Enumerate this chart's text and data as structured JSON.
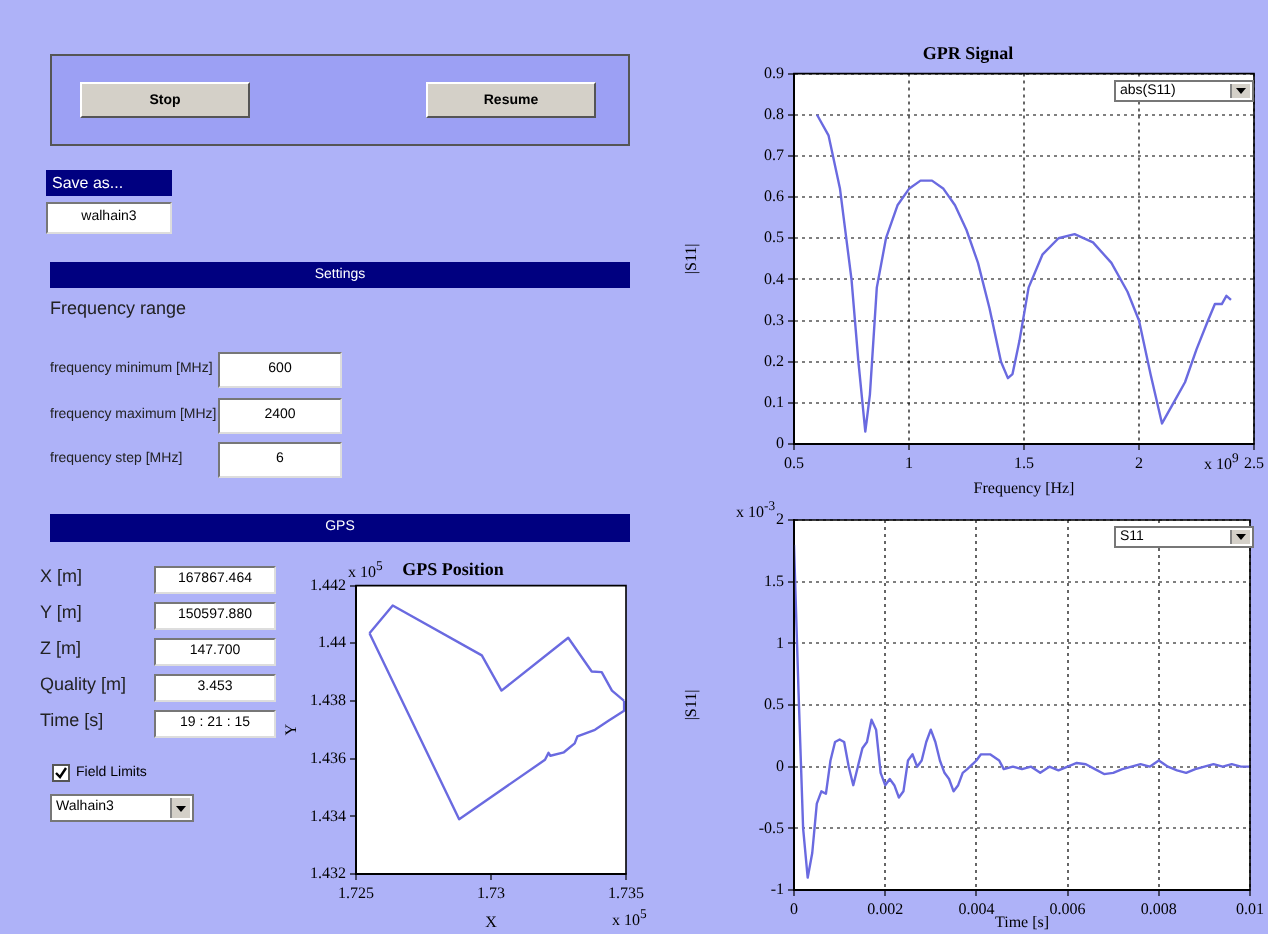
{
  "chart_data": [
    {
      "type": "other",
      "annotations": [
        "Stop",
        "Resume",
        "Save as...",
        "walhain3",
        "Settings",
        "Frequency range",
        "frequency minimum [MHz]",
        "600",
        "frequency maximum [MHz]",
        "2400",
        "frequency step [MHz]",
        "6",
        "GPS",
        "X [m]",
        "167867.464",
        "Y [m]",
        "150597.880",
        "Z [m]",
        "147.700",
        "Quality [m]",
        "3.453",
        "Time [s]",
        "19 : 21 : 15",
        "Field Limits",
        "Walhain3"
      ]
    },
    {
      "type": "line",
      "title": "GPR Signal",
      "xlabel": "Frequency [Hz]",
      "ylabel": "|S11|",
      "xlim": [
        0.5,
        2.5
      ],
      "xticks": [
        0.5,
        1,
        1.5,
        2,
        2.5
      ],
      "ylim": [
        0,
        0.9
      ],
      "yticks": [
        0,
        0.1,
        0.2,
        0.3,
        0.4,
        0.5,
        0.6,
        0.7,
        0.8,
        0.9
      ],
      "grid": true,
      "annotations": [
        "abs(S11)",
        "x 10$^{9}$"
      ],
      "series": [
        {
          "color": "#6a6ae0",
          "x": [
            0.6,
            0.65,
            0.7,
            0.75,
            0.78,
            0.81,
            0.83,
            0.86,
            0.9,
            0.95,
            1.0,
            1.05,
            1.1,
            1.15,
            1.2,
            1.25,
            1.3,
            1.35,
            1.4,
            1.43,
            1.45,
            1.48,
            1.52,
            1.58,
            1.65,
            1.72,
            1.8,
            1.88,
            1.95,
            2.0,
            2.05,
            2.1,
            2.15,
            2.2,
            2.25,
            2.3,
            2.33,
            2.36,
            2.38,
            2.4
          ],
          "values": [
            0.8,
            0.75,
            0.62,
            0.4,
            0.2,
            0.03,
            0.12,
            0.38,
            0.5,
            0.58,
            0.62,
            0.64,
            0.64,
            0.62,
            0.58,
            0.52,
            0.44,
            0.33,
            0.2,
            0.16,
            0.17,
            0.25,
            0.38,
            0.46,
            0.5,
            0.51,
            0.49,
            0.44,
            0.37,
            0.3,
            0.17,
            0.05,
            0.1,
            0.15,
            0.23,
            0.3,
            0.34,
            0.34,
            0.36,
            0.35
          ]
        }
      ]
    },
    {
      "type": "line",
      "title": "GPS Position",
      "xlabel": "X",
      "ylabel": "Y",
      "xlim": [
        1.725,
        1.735
      ],
      "xticks": [
        1.725,
        1.73,
        1.735
      ],
      "ylim": [
        1.432,
        1.442
      ],
      "yticks": [
        1.432,
        1.434,
        1.436,
        1.438,
        1.44,
        1.442
      ],
      "annotations": [
        "x 10$^{5}$",
        "x 10$^{5}$"
      ],
      "series": [
        {
          "color": "#6a6ae0",
          "x": [
            1.7255,
            1.72636,
            1.72966,
            1.73039,
            1.73286,
            1.73373,
            1.7341,
            1.73448,
            1.73493
          ],
          "values": [
            1.44035,
            1.44131,
            1.43958,
            1.43836,
            1.44019,
            1.43902,
            1.439,
            1.43836,
            1.438
          ]
        },
        {
          "color": "#6a6ae0",
          "x": [
            1.7255,
            1.72882,
            1.732,
            1.73213,
            1.7322,
            1.7327,
            1.7331,
            1.7332,
            1.73385,
            1.73435,
            1.73493,
            1.73493
          ],
          "values": [
            1.44035,
            1.4339,
            1.43596,
            1.4362,
            1.4361,
            1.43622,
            1.43653,
            1.43677,
            1.437,
            1.43731,
            1.43766,
            1.438
          ]
        }
      ]
    },
    {
      "type": "line",
      "xlabel": "Time [s]",
      "ylabel": "|S11|",
      "xlim": [
        0,
        0.01
      ],
      "xticks": [
        0,
        0.002,
        0.004,
        0.006,
        0.008,
        0.01
      ],
      "ylim": [
        -1,
        2
      ],
      "yticks": [
        -1,
        -0.5,
        0,
        0.5,
        1,
        1.5,
        2
      ],
      "grid": true,
      "annotations": [
        "S11",
        "x 10$^{-3}$"
      ],
      "series": [
        {
          "color": "#6a6ae0",
          "x": [
            0,
            0.0001,
            0.0002,
            0.0003,
            0.0004,
            0.0005,
            0.0006,
            0.0007,
            0.0008,
            0.0009,
            0.001,
            0.0011,
            0.0012,
            0.0013,
            0.0014,
            0.0015,
            0.0016,
            0.0017,
            0.0018,
            0.0019,
            0.002,
            0.0021,
            0.0022,
            0.0023,
            0.0024,
            0.0025,
            0.0026,
            0.0027,
            0.0028,
            0.0029,
            0.003,
            0.0031,
            0.0032,
            0.0033,
            0.0034,
            0.0035,
            0.0036,
            0.0037,
            0.0038,
            0.004,
            0.0041,
            0.0043,
            0.0045,
            0.0046,
            0.0048,
            0.005,
            0.0052,
            0.0054,
            0.0056,
            0.0058,
            0.006,
            0.0062,
            0.0064,
            0.0066,
            0.0068,
            0.007,
            0.0072,
            0.0074,
            0.0076,
            0.0078,
            0.008,
            0.0082,
            0.0084,
            0.0086,
            0.0088,
            0.009,
            0.0092,
            0.0094,
            0.0096,
            0.0098,
            0.01
          ],
          "values": [
            1.8,
            0.6,
            -0.5,
            -0.9,
            -0.7,
            -0.3,
            -0.2,
            -0.22,
            0.05,
            0.2,
            0.22,
            0.2,
            0.0,
            -0.15,
            0.0,
            0.15,
            0.2,
            0.38,
            0.3,
            -0.05,
            -0.15,
            -0.1,
            -0.15,
            -0.25,
            -0.2,
            0.05,
            0.1,
            0.0,
            0.05,
            0.2,
            0.3,
            0.2,
            0.05,
            -0.05,
            -0.1,
            -0.2,
            -0.15,
            -0.05,
            -0.02,
            0.05,
            0.1,
            0.1,
            0.05,
            -0.02,
            0.0,
            -0.02,
            0.0,
            -0.05,
            0.0,
            -0.03,
            0.0,
            0.03,
            0.02,
            -0.02,
            -0.06,
            -0.05,
            -0.02,
            0.0,
            0.02,
            0.0,
            0.05,
            0.0,
            -0.03,
            -0.05,
            -0.02,
            0.0,
            0.02,
            0.0,
            0.02,
            0.0,
            0.0
          ]
        }
      ]
    }
  ]
}
